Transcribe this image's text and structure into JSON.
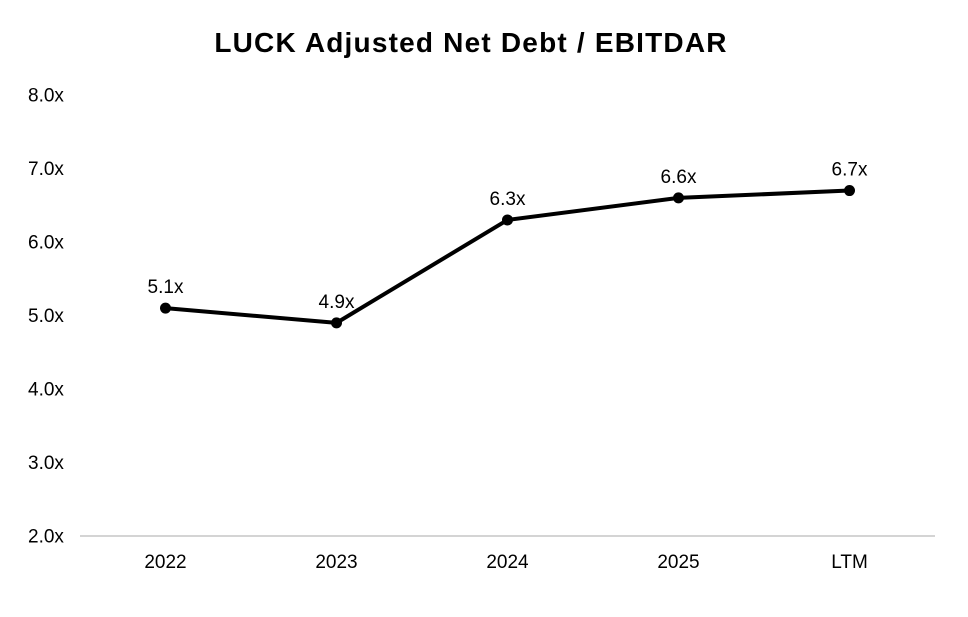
{
  "chart_data": {
    "type": "line",
    "title": "LUCK Adjusted Net Debt / EBITDAR",
    "categories": [
      "2022",
      "2023",
      "2024",
      "2025",
      "LTM"
    ],
    "values": [
      5.1,
      4.9,
      6.3,
      6.6,
      6.7
    ],
    "point_labels": [
      "5.1x",
      "4.9x",
      "6.3x",
      "6.6x",
      "6.7x"
    ],
    "series_name": "Adjusted Net Debt / EBITDAR",
    "xlabel": "",
    "ylabel": "",
    "ylim": [
      2.0,
      8.0
    ],
    "ytick_step": 1.0,
    "ytick_labels": [
      "2.0x",
      "3.0x",
      "4.0x",
      "5.0x",
      "6.0x",
      "7.0x",
      "8.0x"
    ],
    "grid": false,
    "legend": "none",
    "line_color": "#000000",
    "marker_color": "#000000",
    "axis_line_color": "#d4d4d4",
    "text_color": "#000000",
    "background_color": "#ffffff"
  }
}
